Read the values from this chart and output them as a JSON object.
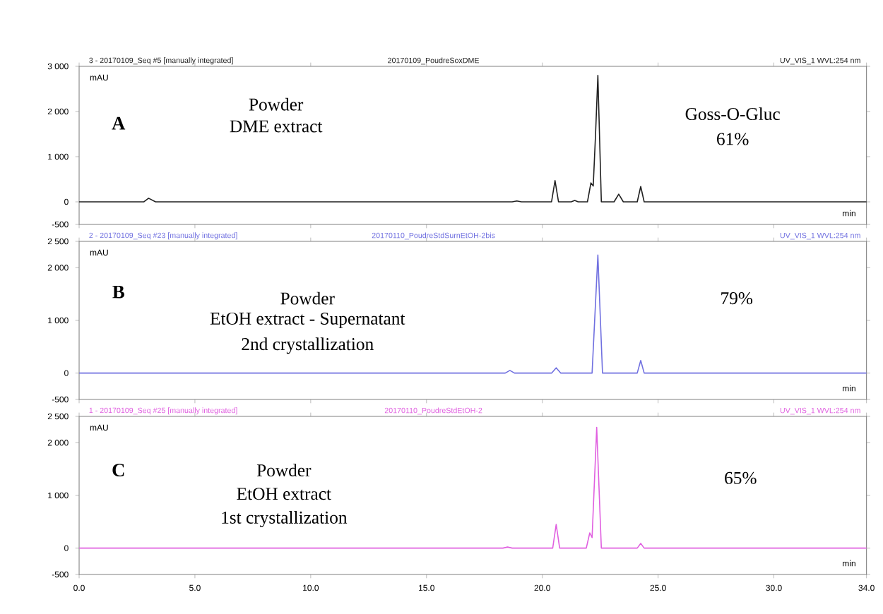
{
  "chart_data": [
    {
      "type": "line",
      "title": "A",
      "xlabel": "min",
      "ylabel": "mAU",
      "xlim": [
        0,
        34
      ],
      "ylim": [
        -500,
        3000
      ],
      "xticks": [
        {
          "value": 0,
          "label": null
        },
        {
          "value": 5,
          "label": null
        },
        {
          "value": 10,
          "label": null
        },
        {
          "value": 15,
          "label": null
        },
        {
          "value": 20,
          "label": null
        },
        {
          "value": 25,
          "label": null
        },
        {
          "value": 30,
          "label": null
        },
        {
          "value": 34,
          "label": null
        }
      ],
      "yticks": [
        -500,
        0,
        {
          "value": 1000,
          "label": "1 000"
        },
        {
          "value": 2000,
          "label": "2 000"
        },
        {
          "value": 3000,
          "label": "3 000"
        }
      ],
      "tick_labels": "y",
      "grid": false,
      "marker": "none",
      "line_style": "solid",
      "annotations": [
        "3 - 20170109_Seq #5 [manually integrated]",
        "20170109_PoudreSoxDME",
        "UV_VIS_1 WVL:254 nm",
        "Powder",
        "DME extract",
        "Goss-O-Gluc",
        "61%"
      ],
      "series": [
        {
          "color": "#202020",
          "x": [
            0,
            2.8,
            3.0,
            3.3,
            18.7,
            18.9,
            19.1,
            20.4,
            20.55,
            20.7,
            21.25,
            21.4,
            21.55,
            21.95,
            22.1,
            22.2,
            22.3,
            22.4,
            22.55,
            23.1,
            23.3,
            23.5,
            24.1,
            24.25,
            24.4,
            34
          ],
          "values": [
            0,
            0,
            80,
            0,
            0,
            20,
            0,
            0,
            470,
            0,
            0,
            30,
            0,
            0,
            420,
            350,
            1500,
            2800,
            0,
            0,
            170,
            0,
            0,
            340,
            0,
            0
          ]
        }
      ]
    },
    {
      "type": "line",
      "title": "B",
      "xlabel": "min",
      "ylabel": "mAU",
      "xlim": [
        0,
        34
      ],
      "ylim": [
        -500,
        2500
      ],
      "xticks": [
        {
          "value": 0,
          "label": null
        },
        {
          "value": 5,
          "label": null
        },
        {
          "value": 10,
          "label": null
        },
        {
          "value": 15,
          "label": null
        },
        {
          "value": 20,
          "label": null
        },
        {
          "value": 25,
          "label": null
        },
        {
          "value": 30,
          "label": null
        },
        {
          "value": 34,
          "label": null
        }
      ],
      "yticks": [
        -500,
        0,
        {
          "value": 1000,
          "label": "1 000"
        },
        {
          "value": 2000,
          "label": "2 000"
        },
        {
          "value": 2500,
          "label": "2 500"
        }
      ],
      "tick_labels": "y",
      "grid": false,
      "marker": "none",
      "line_style": "solid",
      "annotations": [
        "2 - 20170109_Seq #23 [manually integrated]",
        "20170110_PoudreStdSurnEtOH-2bis",
        "UV_VIS_1 WVL:254 nm",
        "Powder",
        "EtOH  extract - Supernatant",
        "2nd crystallization",
        "79%"
      ],
      "series": [
        {
          "color": "#7070e0",
          "x": [
            0,
            18.4,
            18.6,
            18.8,
            20.4,
            20.6,
            20.8,
            22.15,
            22.4,
            22.6,
            24.1,
            24.25,
            24.4,
            34
          ],
          "values": [
            0,
            0,
            50,
            0,
            0,
            100,
            0,
            0,
            2240,
            0,
            0,
            240,
            0,
            0
          ]
        }
      ]
    },
    {
      "type": "line",
      "title": "C",
      "xlabel": "min",
      "ylabel": "mAU",
      "xlim": [
        0,
        34
      ],
      "ylim": [
        -500,
        2500
      ],
      "xticks": [
        {
          "value": 0,
          "label": "0.0"
        },
        {
          "value": 5,
          "label": "5.0"
        },
        {
          "value": 10,
          "label": "10.0"
        },
        {
          "value": 15,
          "label": "15.0"
        },
        {
          "value": 20,
          "label": "20.0"
        },
        {
          "value": 25,
          "label": "25.0"
        },
        {
          "value": 30,
          "label": "30.0"
        },
        {
          "value": 34,
          "label": "34.0"
        }
      ],
      "yticks": [
        -500,
        0,
        {
          "value": 1000,
          "label": "1 000"
        },
        {
          "value": 2000,
          "label": "2 000"
        },
        {
          "value": 2500,
          "label": "2 500"
        }
      ],
      "grid": false,
      "marker": "none",
      "line_style": "solid",
      "annotations": [
        "1 - 20170109_Seq #25 [manually integrated]",
        "20170110_PoudreStdEtOH-2",
        "UV_VIS_1 WVL:254 nm",
        "Powder",
        "EtOH extract",
        "1st crystallization",
        "65%"
      ],
      "series": [
        {
          "color": "#e060e0",
          "x": [
            0,
            18.3,
            18.5,
            18.7,
            20.45,
            20.6,
            20.75,
            21.9,
            22.05,
            22.15,
            22.35,
            22.55,
            24.1,
            24.25,
            24.4,
            34
          ],
          "values": [
            0,
            0,
            20,
            0,
            0,
            450,
            0,
            0,
            290,
            200,
            2290,
            0,
            0,
            90,
            0,
            0
          ]
        }
      ]
    }
  ]
}
